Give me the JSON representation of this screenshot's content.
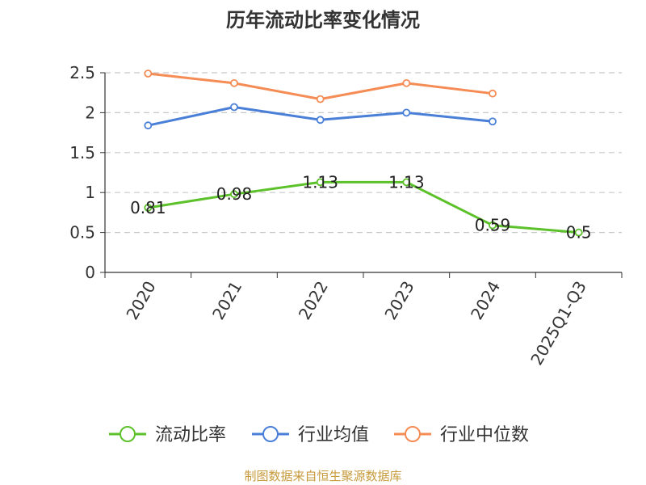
{
  "chart_data": {
    "type": "line",
    "title": "历年流动比率变化情况",
    "categories": [
      "2020",
      "2021",
      "2022",
      "2023",
      "2024",
      "2025Q1-Q3"
    ],
    "ylim": [
      0,
      2.5
    ],
    "yticks": [
      "0",
      "0.5",
      "1",
      "1.5",
      "2",
      "2.5"
    ],
    "grid": true,
    "legend_position": "bottom",
    "series": [
      {
        "name": "流动比率",
        "color": "#5cc12a",
        "values": [
          0.81,
          0.98,
          1.13,
          1.13,
          0.59,
          0.5
        ],
        "labels": [
          "0.81",
          "0.98",
          "1.13",
          "1.13",
          "0.59",
          "0.5"
        ]
      },
      {
        "name": "行业均值",
        "color": "#4a7fd8",
        "values": [
          1.84,
          2.07,
          1.91,
          2.0,
          1.89,
          null
        ]
      },
      {
        "name": "行业中位数",
        "color": "#f58c55",
        "values": [
          2.49,
          2.37,
          2.17,
          2.37,
          2.24,
          null
        ]
      }
    ]
  },
  "footer": {
    "source": "制图数据来自恒生聚源数据库"
  }
}
